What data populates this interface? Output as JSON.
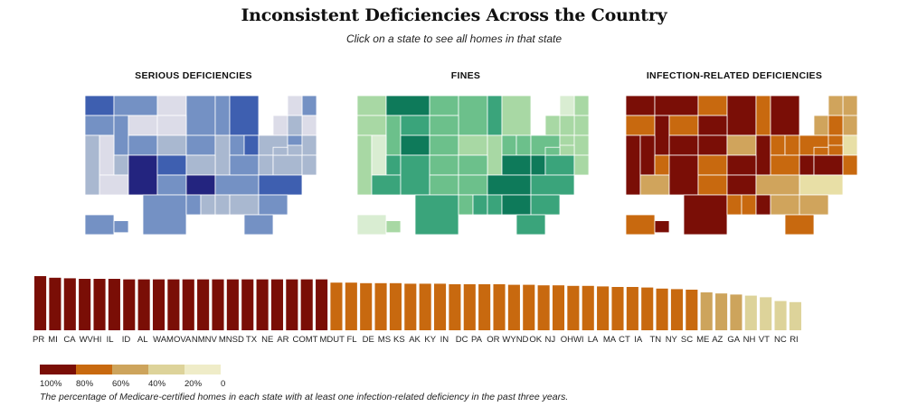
{
  "header": {
    "title": "Inconsistent Deficiencies Across the Country",
    "subtitle": "Click on a state to see all homes in that state"
  },
  "maps": [
    {
      "id": "serious",
      "title": "SERIOUS DEFICIENCIES",
      "palette": [
        "#dcdce8",
        "#a9b8d0",
        "#7491c4",
        "#3e5fb0",
        "#23247f"
      ]
    },
    {
      "id": "fines",
      "title": "FINES",
      "palette": [
        "#d9edd2",
        "#a8d8a4",
        "#6cc08b",
        "#3aa47b",
        "#0e7a5a"
      ]
    },
    {
      "id": "infection",
      "title": "INFECTION-RELATED DEFICIENCIES",
      "palette": [
        "#e8dfa6",
        "#d0a45c",
        "#c8690f",
        "#b35a0a",
        "#7a0e06"
      ]
    }
  ],
  "colors": {
    "dark_red": "#7a0e06",
    "orange": "#c8690f",
    "tan": "#cda45c",
    "light_tan": "#ddd39a",
    "cream": "#efecc8"
  },
  "chart_data": {
    "type": "bar",
    "title": "",
    "xlabel": "",
    "ylabel": "",
    "ylim": [
      0,
      100
    ],
    "categories": [
      "PR",
      "MI",
      "CA",
      "WV",
      "HI",
      "IL",
      "ID",
      "AL",
      "WA",
      "MO",
      "VA",
      "NM",
      "NV",
      "MN",
      "SD",
      "TX",
      "NE",
      "AR",
      "CO",
      "MT",
      "MD",
      "UT",
      "FL",
      "DE",
      "MS",
      "KS",
      "AK",
      "KY",
      "IN",
      "DC",
      "PA",
      "OR",
      "WY",
      "ND",
      "OK",
      "NJ",
      "OH",
      "WI",
      "LA",
      "MA",
      "CT",
      "IA",
      "TN",
      "NY",
      "SC",
      "ME",
      "AZ",
      "GA",
      "NH",
      "VT",
      "NC",
      "RI"
    ],
    "values": [
      100,
      97,
      96,
      95,
      95,
      95,
      94,
      94,
      94,
      94,
      94,
      94,
      94,
      94,
      94,
      94,
      94,
      94,
      94,
      94,
      88,
      88,
      87,
      87,
      87,
      86,
      86,
      86,
      85,
      85,
      85,
      85,
      84,
      84,
      83,
      83,
      82,
      82,
      81,
      80,
      80,
      79,
      77,
      76,
      75,
      70,
      68,
      66,
      64,
      61,
      54,
      52
    ],
    "display_labels": [
      "PR",
      "MI",
      "CA",
      "WVHI",
      "IL",
      "ID",
      "AL",
      "WAMOVA",
      "NMNV",
      "MNSD",
      "TX",
      "NE",
      "AR",
      "COMT",
      "MDUT",
      "FL",
      "DE",
      "MS",
      "KS",
      "AK",
      "KY",
      "IN",
      "DC",
      "PA",
      "OR",
      "WYND",
      "OK",
      "NJ",
      "OHWI",
      "LA",
      "MA",
      "CT",
      "IA",
      "TN",
      "NY",
      "SC",
      "ME",
      "AZ",
      "GA",
      "NH",
      "VT",
      "NC",
      "RI"
    ],
    "legend": {
      "ticks": [
        "100%",
        "80%",
        "60%",
        "40%",
        "20%",
        "0"
      ],
      "colors": [
        "#7a0e06",
        "#c8690f",
        "#cda45c",
        "#ddd39a",
        "#efecc8"
      ]
    }
  },
  "footnote": "The percentage of Medicare-certified homes in each state with at least one infection-related deficiency in the past three years."
}
